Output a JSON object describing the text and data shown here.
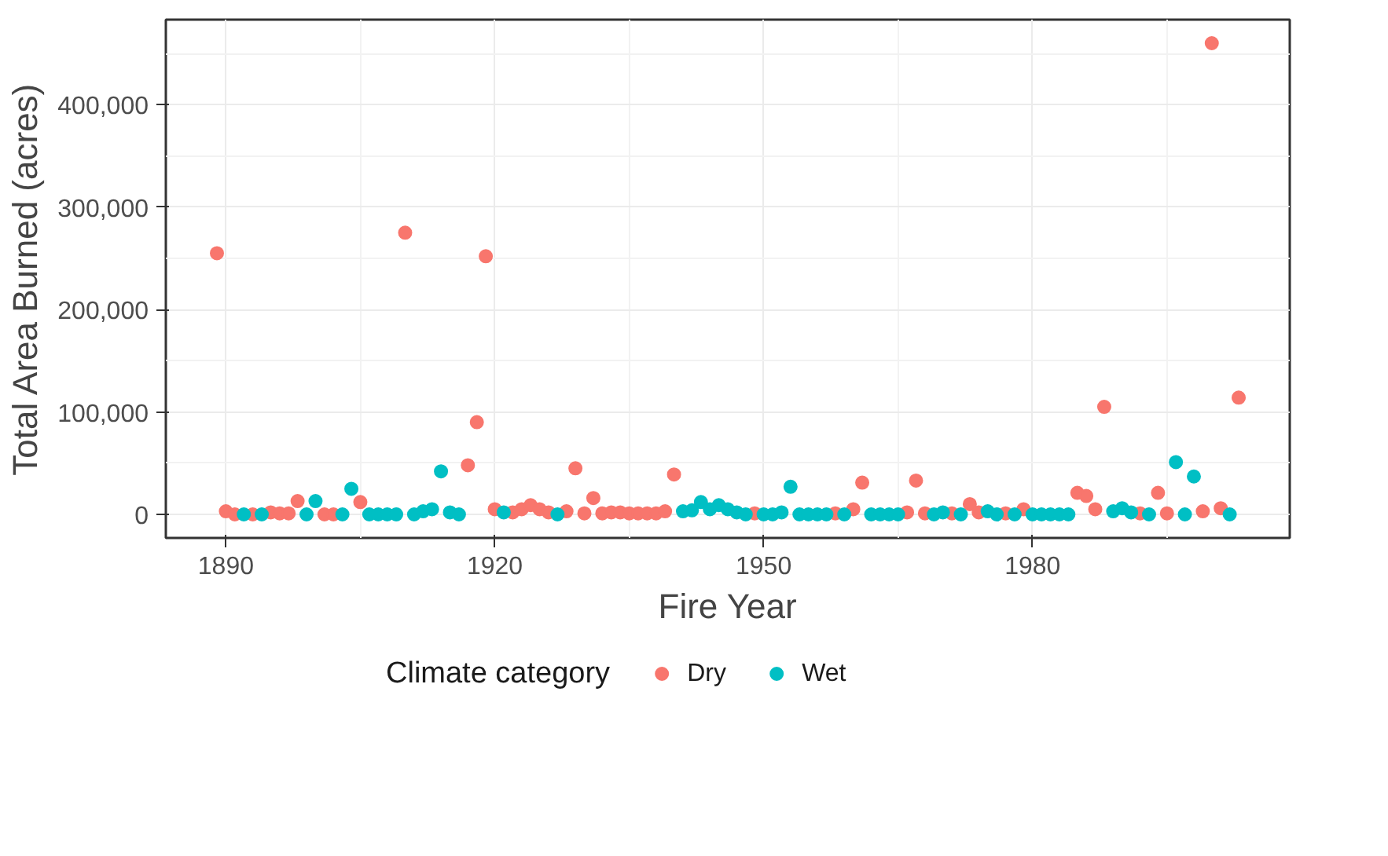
{
  "chart_data": {
    "type": "scatter",
    "xlabel": "Fire Year",
    "ylabel": "Total Area Burned (acres)",
    "legend_title": "Climate category",
    "xlim": [
      1883.3,
      2008.7
    ],
    "ylim": [
      -23000,
      483000
    ],
    "xticks": [
      1890,
      1920,
      1950,
      1980
    ],
    "yticks": [
      0,
      {
        "value": 100000,
        "label": "100,000"
      },
      {
        "value": 200000,
        "label": "200,000"
      },
      {
        "value": 300000,
        "label": "300,000"
      },
      {
        "value": 400000,
        "label": "400,000"
      }
    ],
    "grid": true,
    "legend": "bottom",
    "marker": "circle",
    "series": [
      {
        "name": "Dry",
        "color": "#f8766d",
        "x": [
          1889,
          1890,
          1891,
          1893,
          1895,
          1896,
          1897,
          1898,
          1901,
          1902,
          1905,
          1910,
          1917,
          1918,
          1919,
          1920,
          1922,
          1923,
          1924,
          1925,
          1926,
          1928,
          1929,
          1930,
          1931,
          1932,
          1933,
          1934,
          1935,
          1936,
          1937,
          1938,
          1939,
          1940,
          1949,
          1958,
          1960,
          1961,
          1966,
          1967,
          1968,
          1971,
          1973,
          1974,
          1977,
          1979,
          1985,
          1986,
          1987,
          1988,
          1992,
          1994,
          1995,
          1999,
          2000,
          2001,
          2003
        ],
        "values": [
          255000,
          3000,
          0,
          0,
          2000,
          1000,
          1000,
          13000,
          0,
          0,
          12000,
          275000,
          48000,
          90000,
          252000,
          5000,
          2000,
          5000,
          9000,
          5000,
          2000,
          3000,
          45000,
          1000,
          16000,
          1000,
          2000,
          2000,
          1000,
          1000,
          1000,
          1000,
          3000,
          39000,
          1000,
          1000,
          5000,
          31000,
          2000,
          33000,
          1000,
          1000,
          10000,
          2000,
          1000,
          5000,
          21000,
          18000,
          5000,
          105000,
          1000,
          21000,
          1000,
          3000,
          460000,
          6000,
          114000
        ]
      },
      {
        "name": "Wet",
        "color": "#00bfc4",
        "x": [
          1892,
          1894,
          1899,
          1900,
          1903,
          1904,
          1906,
          1907,
          1908,
          1909,
          1911,
          1912,
          1913,
          1914,
          1915,
          1916,
          1921,
          1927,
          1941,
          1942,
          1943,
          1944,
          1945,
          1946,
          1947,
          1948,
          1950,
          1951,
          1952,
          1953,
          1954,
          1955,
          1956,
          1957,
          1959,
          1962,
          1963,
          1964,
          1965,
          1969,
          1970,
          1972,
          1975,
          1976,
          1978,
          1980,
          1981,
          1982,
          1983,
          1984,
          1989,
          1990,
          1991,
          1993,
          1996,
          1997,
          1998,
          2002
        ],
        "values": [
          0,
          0,
          0,
          13000,
          0,
          25000,
          0,
          0,
          0,
          0,
          0,
          3000,
          5000,
          42000,
          2000,
          0,
          2000,
          0,
          3000,
          4000,
          12000,
          5000,
          9000,
          5000,
          2000,
          0,
          0,
          0,
          2000,
          27000,
          0,
          0,
          0,
          0,
          0,
          0,
          0,
          0,
          0,
          0,
          2000,
          0,
          3000,
          0,
          0,
          0,
          0,
          0,
          0,
          0,
          3000,
          6000,
          2000,
          0,
          51000,
          0,
          37000,
          0
        ]
      }
    ]
  }
}
